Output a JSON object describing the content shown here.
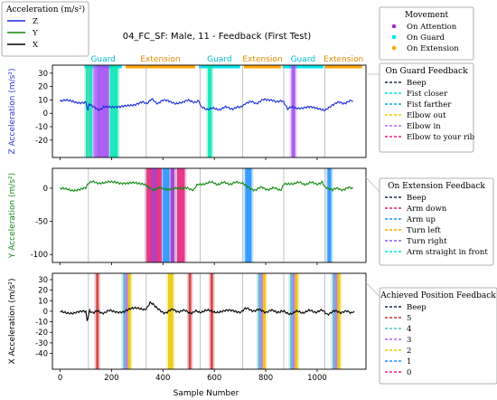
{
  "chart_data": {
    "type": "line",
    "title": "04_FC_SF:  Male, 11 - Feedback (First Test)",
    "xlabel": "Sample Number",
    "xlim": [
      -30,
      1190
    ],
    "xticks": [
      0,
      200,
      400,
      600,
      800,
      1000
    ],
    "phase_lines": [
      110,
      335,
      545,
      710,
      870,
      1030
    ],
    "segments": [
      {
        "label": "Guard",
        "start": 95,
        "end": 240,
        "color": "#00e5ee"
      },
      {
        "label": "Extension",
        "start": 255,
        "end": 525,
        "color": "#ffa500"
      },
      {
        "label": "Guard",
        "start": 540,
        "end": 700,
        "color": "#00e5ee"
      },
      {
        "label": "Extension",
        "start": 715,
        "end": 860,
        "color": "#ffa500"
      },
      {
        "label": "Guard",
        "start": 865,
        "end": 1025,
        "color": "#00e5ee"
      },
      {
        "label": "Extension",
        "start": 1030,
        "end": 1175,
        "color": "#ffa500"
      }
    ],
    "panels": [
      {
        "id": "z",
        "ylabel": "Z Acceleration (m/s²)",
        "ylabel_color": "#2a3ad0",
        "line_color": "#1a2bd8",
        "ylim": [
          -33,
          36
        ],
        "yticks": [
          -20,
          -10,
          0,
          10,
          20,
          30
        ],
        "series_points": [
          [
            0,
            9
          ],
          [
            50,
            9
          ],
          [
            100,
            8
          ],
          [
            108,
            1
          ],
          [
            112,
            6
          ],
          [
            120,
            6
          ],
          [
            150,
            3
          ],
          [
            170,
            5
          ],
          [
            200,
            4
          ],
          [
            230,
            4
          ],
          [
            260,
            5
          ],
          [
            290,
            6
          ],
          [
            320,
            9
          ],
          [
            335,
            8
          ],
          [
            360,
            10
          ],
          [
            380,
            8
          ],
          [
            400,
            9
          ],
          [
            420,
            10
          ],
          [
            450,
            8
          ],
          [
            480,
            9
          ],
          [
            520,
            9
          ],
          [
            540,
            9
          ],
          [
            548,
            4
          ],
          [
            560,
            4
          ],
          [
            600,
            3
          ],
          [
            640,
            4
          ],
          [
            700,
            4
          ],
          [
            720,
            8
          ],
          [
            760,
            8
          ],
          [
            800,
            10
          ],
          [
            830,
            10
          ],
          [
            870,
            8
          ],
          [
            885,
            3
          ],
          [
            900,
            5
          ],
          [
            950,
            4
          ],
          [
            1000,
            4
          ],
          [
            1030,
            3
          ],
          [
            1060,
            7
          ],
          [
            1100,
            8
          ],
          [
            1140,
            9
          ]
        ],
        "bands": [
          {
            "x0": 100,
            "x1": 125,
            "color": "#00e5b0"
          },
          {
            "x0": 130,
            "x1": 145,
            "color": "#b266ff"
          },
          {
            "x0": 145,
            "x1": 190,
            "color": "#a04cf0"
          },
          {
            "x0": 195,
            "x1": 225,
            "color": "#00e5b0"
          },
          {
            "x0": 575,
            "x1": 590,
            "color": "#00e5b0"
          },
          {
            "x0": 900,
            "x1": 915,
            "color": "#a04cf0"
          }
        ]
      },
      {
        "id": "y",
        "ylabel": "Y Acceleration (m/s²)",
        "ylabel_color": "#1a8a1a",
        "line_color": "#0f8a0f",
        "ylim": [
          -112,
          30
        ],
        "yticks": [
          -100,
          -50,
          0
        ],
        "series_points": [
          [
            0,
            -2
          ],
          [
            50,
            -2
          ],
          [
            100,
            -1
          ],
          [
            110,
            8
          ],
          [
            150,
            9
          ],
          [
            200,
            8
          ],
          [
            250,
            9
          ],
          [
            300,
            6
          ],
          [
            330,
            5
          ],
          [
            360,
            -2
          ],
          [
            380,
            1
          ],
          [
            400,
            -2
          ],
          [
            450,
            1
          ],
          [
            480,
            -1
          ],
          [
            520,
            -1
          ],
          [
            545,
            7
          ],
          [
            580,
            8
          ],
          [
            620,
            7
          ],
          [
            700,
            8
          ],
          [
            710,
            6
          ],
          [
            740,
            -2
          ],
          [
            780,
            0
          ],
          [
            820,
            -1
          ],
          [
            860,
            -1
          ],
          [
            870,
            7
          ],
          [
            900,
            8
          ],
          [
            960,
            7
          ],
          [
            1020,
            8
          ],
          [
            1030,
            3
          ],
          [
            1060,
            -2
          ],
          [
            1100,
            -1
          ],
          [
            1140,
            0
          ]
        ],
        "bands": [
          {
            "x0": 335,
            "x1": 360,
            "color": "#e0207a"
          },
          {
            "x0": 360,
            "x1": 375,
            "color": "#9932cc"
          },
          {
            "x0": 375,
            "x1": 395,
            "color": "#e0207a"
          },
          {
            "x0": 400,
            "x1": 425,
            "color": "#1e90ff"
          },
          {
            "x0": 430,
            "x1": 445,
            "color": "#9932cc"
          },
          {
            "x0": 455,
            "x1": 485,
            "color": "#e0207a"
          },
          {
            "x0": 720,
            "x1": 745,
            "color": "#1e90ff"
          },
          {
            "x0": 1040,
            "x1": 1055,
            "color": "#1e90ff"
          }
        ]
      },
      {
        "id": "x",
        "ylabel": "X Acceleration (m/s²)",
        "ylabel_color": "#000000",
        "line_color": "#000000",
        "ylim": [
          -55,
          36
        ],
        "yticks": [
          -40,
          -30,
          -20,
          -10,
          0,
          10,
          20,
          30
        ],
        "series_points": [
          [
            0,
            -1
          ],
          [
            50,
            -1
          ],
          [
            100,
            -1
          ],
          [
            105,
            -8
          ],
          [
            115,
            0
          ],
          [
            160,
            -1
          ],
          [
            200,
            0
          ],
          [
            250,
            0
          ],
          [
            300,
            3
          ],
          [
            330,
            2
          ],
          [
            350,
            8
          ],
          [
            370,
            4
          ],
          [
            400,
            -1
          ],
          [
            440,
            1
          ],
          [
            480,
            0
          ],
          [
            520,
            -1
          ],
          [
            545,
            0
          ],
          [
            600,
            0
          ],
          [
            650,
            0
          ],
          [
            700,
            0
          ],
          [
            720,
            2
          ],
          [
            760,
            1
          ],
          [
            800,
            0
          ],
          [
            860,
            0
          ],
          [
            880,
            -2
          ],
          [
            920,
            -1
          ],
          [
            980,
            0
          ],
          [
            1020,
            0
          ],
          [
            1040,
            -2
          ],
          [
            1080,
            0
          ],
          [
            1120,
            -1
          ],
          [
            1145,
            0
          ]
        ],
        "bands": [
          {
            "x0": 140,
            "x1": 150,
            "color": "#cc3333"
          },
          {
            "x0": 245,
            "x1": 255,
            "color": "#4fc3c3"
          },
          {
            "x0": 255,
            "x1": 265,
            "color": "#b266ff"
          },
          {
            "x0": 265,
            "x1": 275,
            "color": "#e6c800"
          },
          {
            "x0": 420,
            "x1": 440,
            "color": "#e6c800"
          },
          {
            "x0": 500,
            "x1": 510,
            "color": "#cc3333"
          },
          {
            "x0": 585,
            "x1": 595,
            "color": "#cc3333"
          },
          {
            "x0": 770,
            "x1": 780,
            "color": "#4fc3c3"
          },
          {
            "x0": 780,
            "x1": 790,
            "color": "#b266ff"
          },
          {
            "x0": 790,
            "x1": 800,
            "color": "#e6c800"
          },
          {
            "x0": 895,
            "x1": 905,
            "color": "#4fc3c3"
          },
          {
            "x0": 905,
            "x1": 915,
            "color": "#b266ff"
          },
          {
            "x0": 915,
            "x1": 925,
            "color": "#e6c800"
          },
          {
            "x0": 1060,
            "x1": 1070,
            "color": "#4fc3c3"
          },
          {
            "x0": 1070,
            "x1": 1080,
            "color": "#b266ff"
          },
          {
            "x0": 1080,
            "x1": 1090,
            "color": "#e6c800"
          }
        ]
      }
    ],
    "legends": {
      "acceleration": {
        "title": "Acceleration (m/s²)",
        "items": [
          {
            "label": "Z",
            "color": "#1a2bd8"
          },
          {
            "label": "Y",
            "color": "#0f8a0f"
          },
          {
            "label": "X",
            "color": "#000000"
          }
        ]
      },
      "movement": {
        "title": "Movement",
        "items": [
          {
            "label": "On Attention",
            "color": "#9932cc"
          },
          {
            "label": "On Guard",
            "color": "#00e5ee"
          },
          {
            "label": "On Extension",
            "color": "#ffa500"
          }
        ]
      },
      "on_guard": {
        "title": "On Guard Feedback",
        "items": [
          {
            "label": "Beep",
            "color": "#1f2a44"
          },
          {
            "label": "Fist closer",
            "color": "#00e5d0"
          },
          {
            "label": "Fist farther",
            "color": "#00aacc"
          },
          {
            "label": "Elbow out",
            "color": "#e6c800"
          },
          {
            "label": "Elbow in",
            "color": "#b266ff"
          },
          {
            "label": "Elbow to your rib",
            "color": "#e0207a"
          }
        ]
      },
      "on_extension": {
        "title": "On Extension Feedback",
        "items": [
          {
            "label": "Beep",
            "color": "#1f2a44"
          },
          {
            "label": "Arm down",
            "color": "#e0207a"
          },
          {
            "label": "Arm up",
            "color": "#1e90ff"
          },
          {
            "label": "Turn left",
            "color": "#ffa500"
          },
          {
            "label": "Turn right",
            "color": "#8a5cf0"
          },
          {
            "label": "Arm straight in front",
            "color": "#00e5d0"
          }
        ]
      },
      "achieved": {
        "title": "Achieved Position Feedback",
        "items": [
          {
            "label": "Beep",
            "color": "#1f2a44"
          },
          {
            "label": "5",
            "color": "#cc3333"
          },
          {
            "label": "4",
            "color": "#4fc3c3"
          },
          {
            "label": "3",
            "color": "#b266ff"
          },
          {
            "label": "2",
            "color": "#e6c800"
          },
          {
            "label": "1",
            "color": "#1e90ff"
          },
          {
            "label": "0",
            "color": "#e0207a"
          }
        ]
      }
    }
  }
}
